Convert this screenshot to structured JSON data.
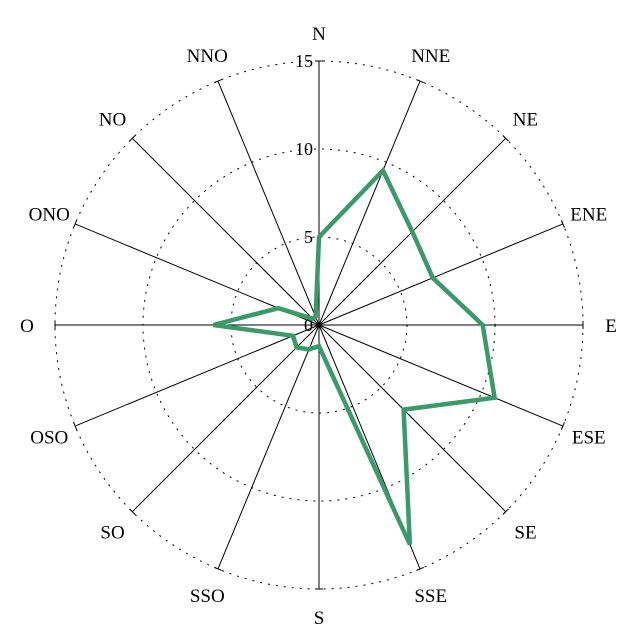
{
  "chart_data": {
    "type": "radar",
    "title": "",
    "directions": [
      "N",
      "NNE",
      "NE",
      "ENE",
      "E",
      "ESE",
      "SE",
      "SSE",
      "S",
      "SSO",
      "SO",
      "OSO",
      "O",
      "ONO",
      "NO",
      "NNO"
    ],
    "radial_ticks": [
      0,
      5,
      10,
      15
    ],
    "rlim": [
      0,
      15
    ],
    "grid": true,
    "legend": "none",
    "series": [
      {
        "values": [
          5.0,
          9.5,
          7.5,
          7.0,
          9.3,
          10.8,
          6.8,
          13.5,
          1.2,
          1.5,
          1.8,
          1.6,
          6.0,
          2.5,
          0.5,
          0.5
        ],
        "color": "#3a9a6a"
      }
    ]
  }
}
